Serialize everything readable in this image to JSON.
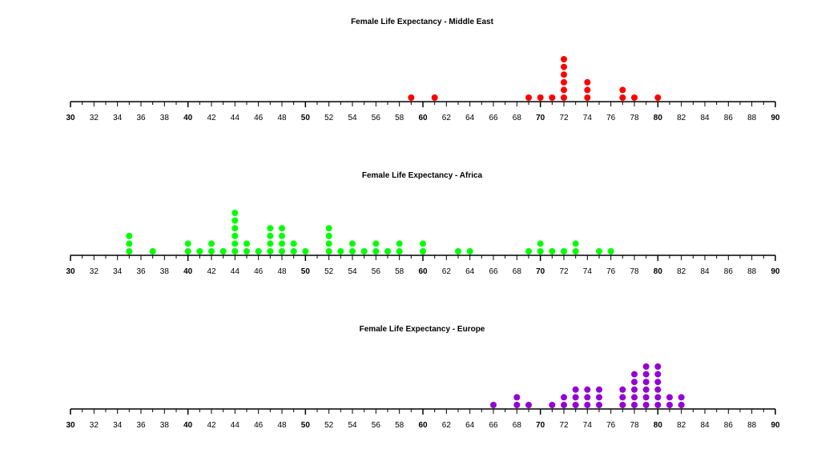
{
  "chart_data": [
    {
      "type": "scatter",
      "title": "Female Life Expectancy - Middle East",
      "xlim": [
        30,
        90
      ],
      "xticks": [
        "30",
        "32",
        "34",
        "36",
        "38",
        "40",
        "42",
        "44",
        "46",
        "48",
        "50",
        "52",
        "54",
        "56",
        "58",
        "60",
        "62",
        "64",
        "66",
        "68",
        "70",
        "72",
        "74",
        "76",
        "78",
        "80",
        "82",
        "84",
        "86",
        "88",
        "90"
      ],
      "color": "#ff0000",
      "points": [
        {
          "x": 59,
          "count": 1
        },
        {
          "x": 61,
          "count": 1
        },
        {
          "x": 69,
          "count": 1
        },
        {
          "x": 70,
          "count": 1
        },
        {
          "x": 71,
          "count": 1
        },
        {
          "x": 72,
          "count": 6
        },
        {
          "x": 74,
          "count": 3
        },
        {
          "x": 77,
          "count": 2
        },
        {
          "x": 78,
          "count": 1
        },
        {
          "x": 80,
          "count": 1
        }
      ]
    },
    {
      "type": "scatter",
      "title": "Female Life Expectancy - Africa",
      "xlim": [
        30,
        90
      ],
      "xticks": [
        "30",
        "32",
        "34",
        "36",
        "38",
        "40",
        "42",
        "44",
        "46",
        "48",
        "50",
        "52",
        "54",
        "56",
        "58",
        "60",
        "62",
        "64",
        "66",
        "68",
        "70",
        "72",
        "74",
        "76",
        "78",
        "80",
        "82",
        "84",
        "86",
        "88",
        "90"
      ],
      "color": "#00ff00",
      "points": [
        {
          "x": 35,
          "count": 3
        },
        {
          "x": 37,
          "count": 1
        },
        {
          "x": 40,
          "count": 2
        },
        {
          "x": 41,
          "count": 1
        },
        {
          "x": 42,
          "count": 2
        },
        {
          "x": 43,
          "count": 1
        },
        {
          "x": 44,
          "count": 6
        },
        {
          "x": 45,
          "count": 2
        },
        {
          "x": 46,
          "count": 1
        },
        {
          "x": 47,
          "count": 4
        },
        {
          "x": 48,
          "count": 4
        },
        {
          "x": 49,
          "count": 2
        },
        {
          "x": 50,
          "count": 1
        },
        {
          "x": 52,
          "count": 4
        },
        {
          "x": 53,
          "count": 1
        },
        {
          "x": 54,
          "count": 2
        },
        {
          "x": 55,
          "count": 1
        },
        {
          "x": 56,
          "count": 2
        },
        {
          "x": 57,
          "count": 1
        },
        {
          "x": 58,
          "count": 2
        },
        {
          "x": 60,
          "count": 2
        },
        {
          "x": 63,
          "count": 1
        },
        {
          "x": 64,
          "count": 1
        },
        {
          "x": 69,
          "count": 1
        },
        {
          "x": 70,
          "count": 2
        },
        {
          "x": 71,
          "count": 1
        },
        {
          "x": 72,
          "count": 1
        },
        {
          "x": 73,
          "count": 2
        },
        {
          "x": 75,
          "count": 1
        },
        {
          "x": 76,
          "count": 1
        }
      ]
    },
    {
      "type": "scatter",
      "title": "Female Life Expectancy - Europe",
      "xlim": [
        30,
        90
      ],
      "xticks": [
        "30",
        "32",
        "34",
        "36",
        "38",
        "40",
        "42",
        "44",
        "46",
        "48",
        "50",
        "52",
        "54",
        "56",
        "58",
        "60",
        "62",
        "64",
        "66",
        "68",
        "70",
        "72",
        "74",
        "76",
        "78",
        "80",
        "82",
        "84",
        "86",
        "88",
        "90"
      ],
      "color": "#9400d3",
      "points": [
        {
          "x": 66,
          "count": 1
        },
        {
          "x": 68,
          "count": 2
        },
        {
          "x": 69,
          "count": 1
        },
        {
          "x": 71,
          "count": 1
        },
        {
          "x": 72,
          "count": 2
        },
        {
          "x": 73,
          "count": 3
        },
        {
          "x": 74,
          "count": 3
        },
        {
          "x": 75,
          "count": 3
        },
        {
          "x": 77,
          "count": 3
        },
        {
          "x": 78,
          "count": 5
        },
        {
          "x": 79,
          "count": 6
        },
        {
          "x": 80,
          "count": 6
        },
        {
          "x": 81,
          "count": 2
        },
        {
          "x": 82,
          "count": 2
        }
      ]
    }
  ]
}
